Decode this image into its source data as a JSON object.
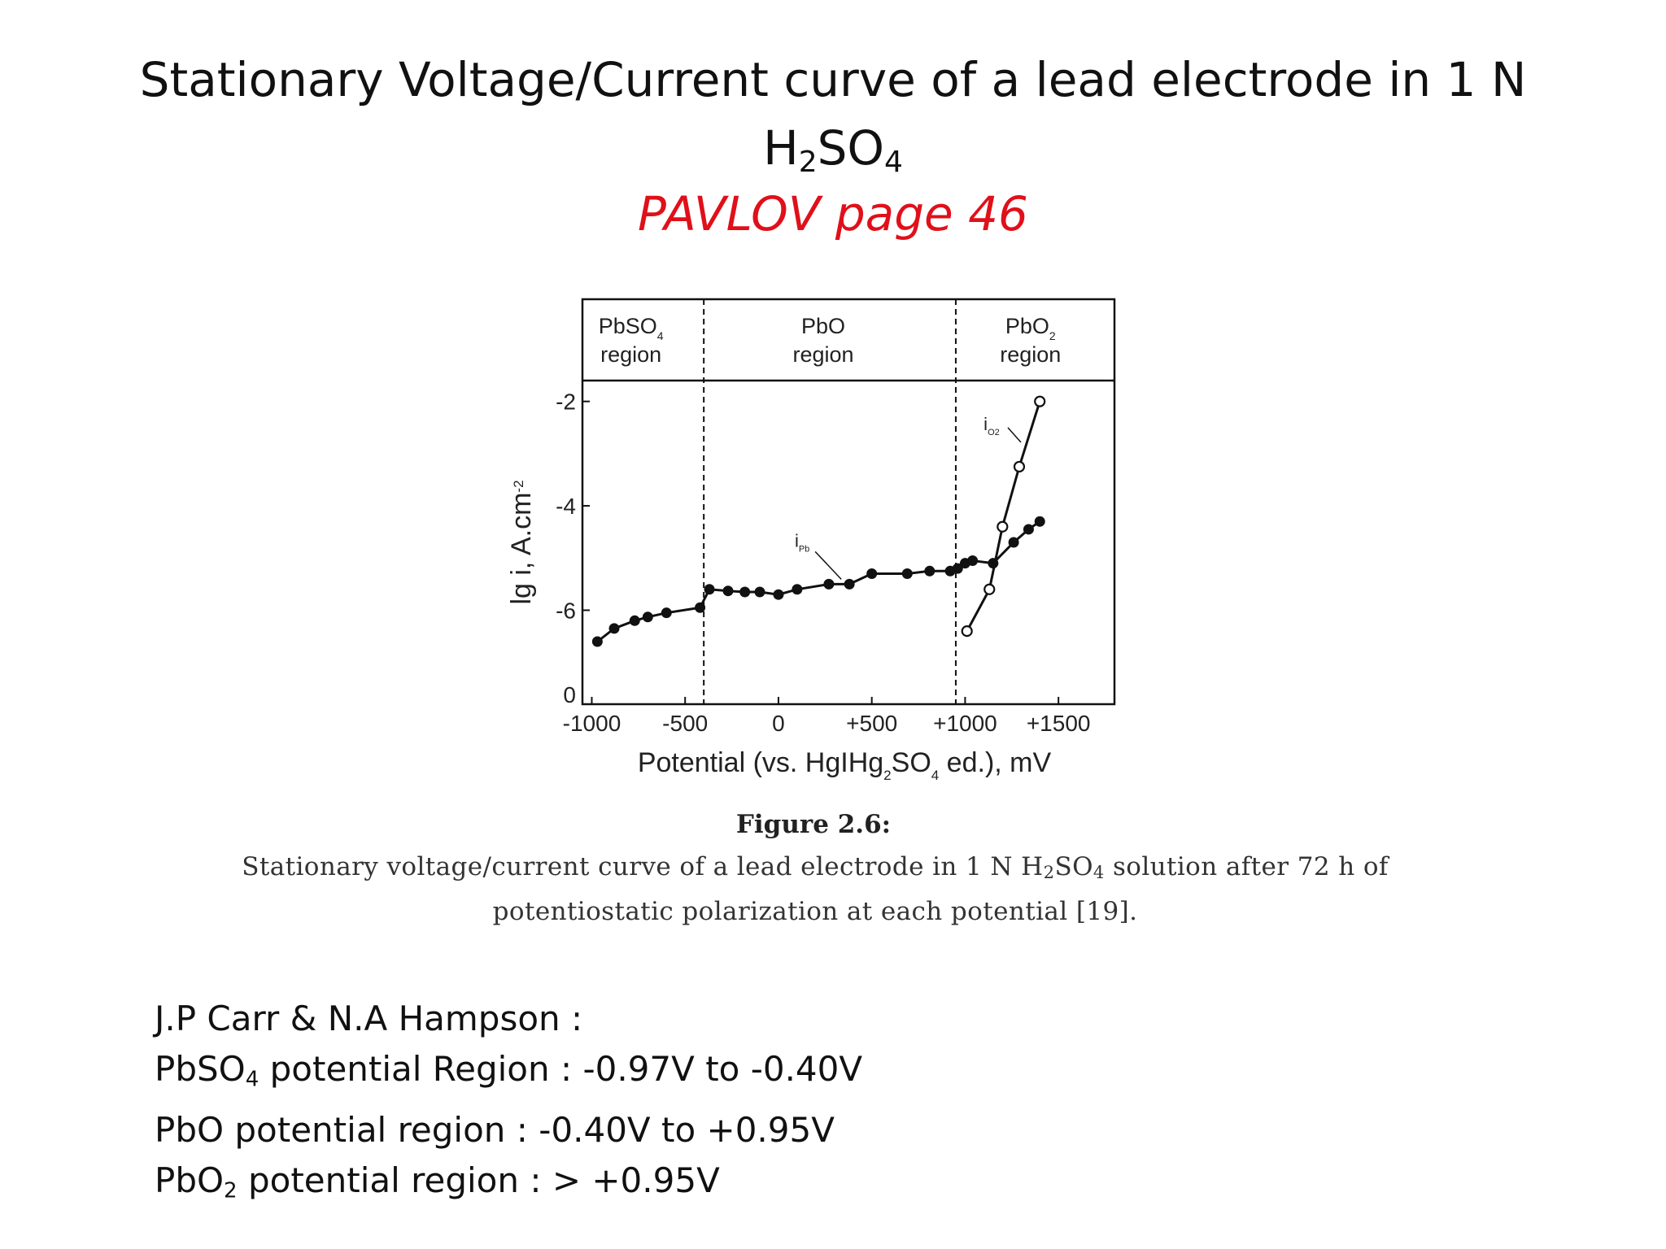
{
  "slide": {
    "title_line1": "Stationary Voltage/Current curve of a lead electrode in 1 N",
    "title_h": "H",
    "title_sub2": "2",
    "title_so": "SO",
    "title_sub4": "4",
    "subtitle": "PAVLOV page 46",
    "subtitle_color": "#e0101a"
  },
  "figure": {
    "label": "Figure 2.6:",
    "caption_part1": "Stationary voltage/current curve of a lead electrode in 1 N H",
    "caption_sub2": "2",
    "caption_part2": "SO",
    "caption_sub4": "4",
    "caption_part3": " solution after 72 h of potentiostatic polarization at each potential [19]."
  },
  "notes": {
    "line1": "J.P Carr & N.A Hampson :",
    "line2_a": "PbSO",
    "line2_sub": "4",
    "line2_b": " potential Region : -0.97V to -0.40V",
    "line3": "PbO potential region : -0.40V to +0.95V",
    "line4_a": "PbO",
    "line4_sub": "2",
    "line4_b": " potential region : > +0.95V"
  },
  "chart_data": {
    "type": "line",
    "xlabel_parts": [
      "Potential (vs. HgIHg",
      "2",
      "SO",
      "4",
      " ed.), mV"
    ],
    "ylabel_parts": [
      "lg i, A.cm",
      "-2"
    ],
    "x_ticks": [
      -1000,
      -500,
      0,
      500,
      1000,
      1500
    ],
    "x_tick_labels": [
      "-1000",
      "-500",
      "0",
      "+500",
      "+1000",
      "+1500"
    ],
    "y_ticks": [
      -2,
      -4,
      -6
    ],
    "y_tick_labels": [
      "-2",
      "-4",
      "-6"
    ],
    "y_bottom_label": "0",
    "xlim": [
      -1050,
      1800
    ],
    "ylim": [
      -7.8,
      -1.6
    ],
    "region_boundaries": [
      -400,
      950
    ],
    "regions": [
      {
        "name_parts": [
          "PbSO",
          "4"
        ],
        "second": "region",
        "x_center": -790
      },
      {
        "name_parts": [
          "PbO",
          ""
        ],
        "second": "region",
        "x_center": 240
      },
      {
        "name_parts": [
          "PbO",
          "2"
        ],
        "second": "region",
        "x_center": 1350
      }
    ],
    "series": [
      {
        "label_parts": [
          "i",
          "Pb"
        ],
        "marker": "filled",
        "x": [
          -970,
          -880,
          -770,
          -700,
          -600,
          -420,
          -370,
          -270,
          -180,
          -100,
          0,
          100,
          270,
          380,
          500,
          690,
          810,
          920,
          960,
          1000,
          1040,
          1150,
          1260,
          1340,
          1400
        ],
        "y": [
          -6.6,
          -6.35,
          -6.2,
          -6.13,
          -6.05,
          -5.95,
          -5.6,
          -5.63,
          -5.65,
          -5.65,
          -5.7,
          -5.6,
          -5.5,
          -5.5,
          -5.3,
          -5.3,
          -5.25,
          -5.25,
          -5.2,
          -5.1,
          -5.05,
          -5.1,
          -4.7,
          -4.45,
          -4.3
        ]
      },
      {
        "label_parts": [
          "i",
          "O2"
        ],
        "marker": "open",
        "x": [
          1010,
          1130,
          1200,
          1290,
          1400
        ],
        "y": [
          -6.4,
          -5.6,
          -4.4,
          -3.25,
          -2.0
        ]
      }
    ]
  }
}
